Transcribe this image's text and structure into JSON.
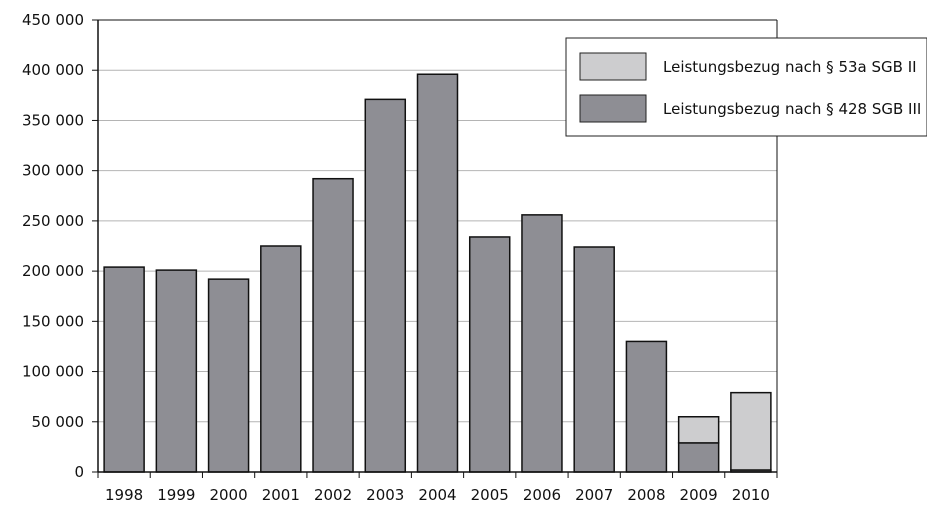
{
  "chart_data": {
    "type": "bar",
    "stacked": true,
    "categories": [
      "1998",
      "1999",
      "2000",
      "2001",
      "2002",
      "2003",
      "2004",
      "2005",
      "2006",
      "2007",
      "2008",
      "2009",
      "2010"
    ],
    "series": [
      {
        "name": "Leistungsbezug nach § 428 SGB III",
        "color": "#8e8e94",
        "values": [
          204000,
          201000,
          192000,
          225000,
          292000,
          371000,
          396000,
          234000,
          256000,
          224000,
          130000,
          29000,
          2000
        ]
      },
      {
        "name": "Leistungsbezug nach § 53a SGB II",
        "color": "#cdcdcf",
        "values": [
          0,
          0,
          0,
          0,
          0,
          0,
          0,
          0,
          0,
          0,
          0,
          26000,
          77000
        ]
      }
    ],
    "y_ticks": [
      0,
      50000,
      100000,
      150000,
      200000,
      250000,
      300000,
      350000,
      400000,
      450000
    ],
    "y_tick_labels": [
      "0",
      "50 000",
      "100 000",
      "150 000",
      "200 000",
      "250 000",
      "300 000",
      "350 000",
      "400 000",
      "450 000"
    ],
    "ylim": [
      0,
      450000
    ],
    "grid": "horizontal",
    "legend": {
      "position": "top-right",
      "entries": [
        {
          "label": "Leistungsbezug nach § 53a SGB II",
          "color": "#cdcdcf"
        },
        {
          "label": "Leistungsbezug nach § 428 SGB III",
          "color": "#8e8e94"
        }
      ]
    }
  }
}
